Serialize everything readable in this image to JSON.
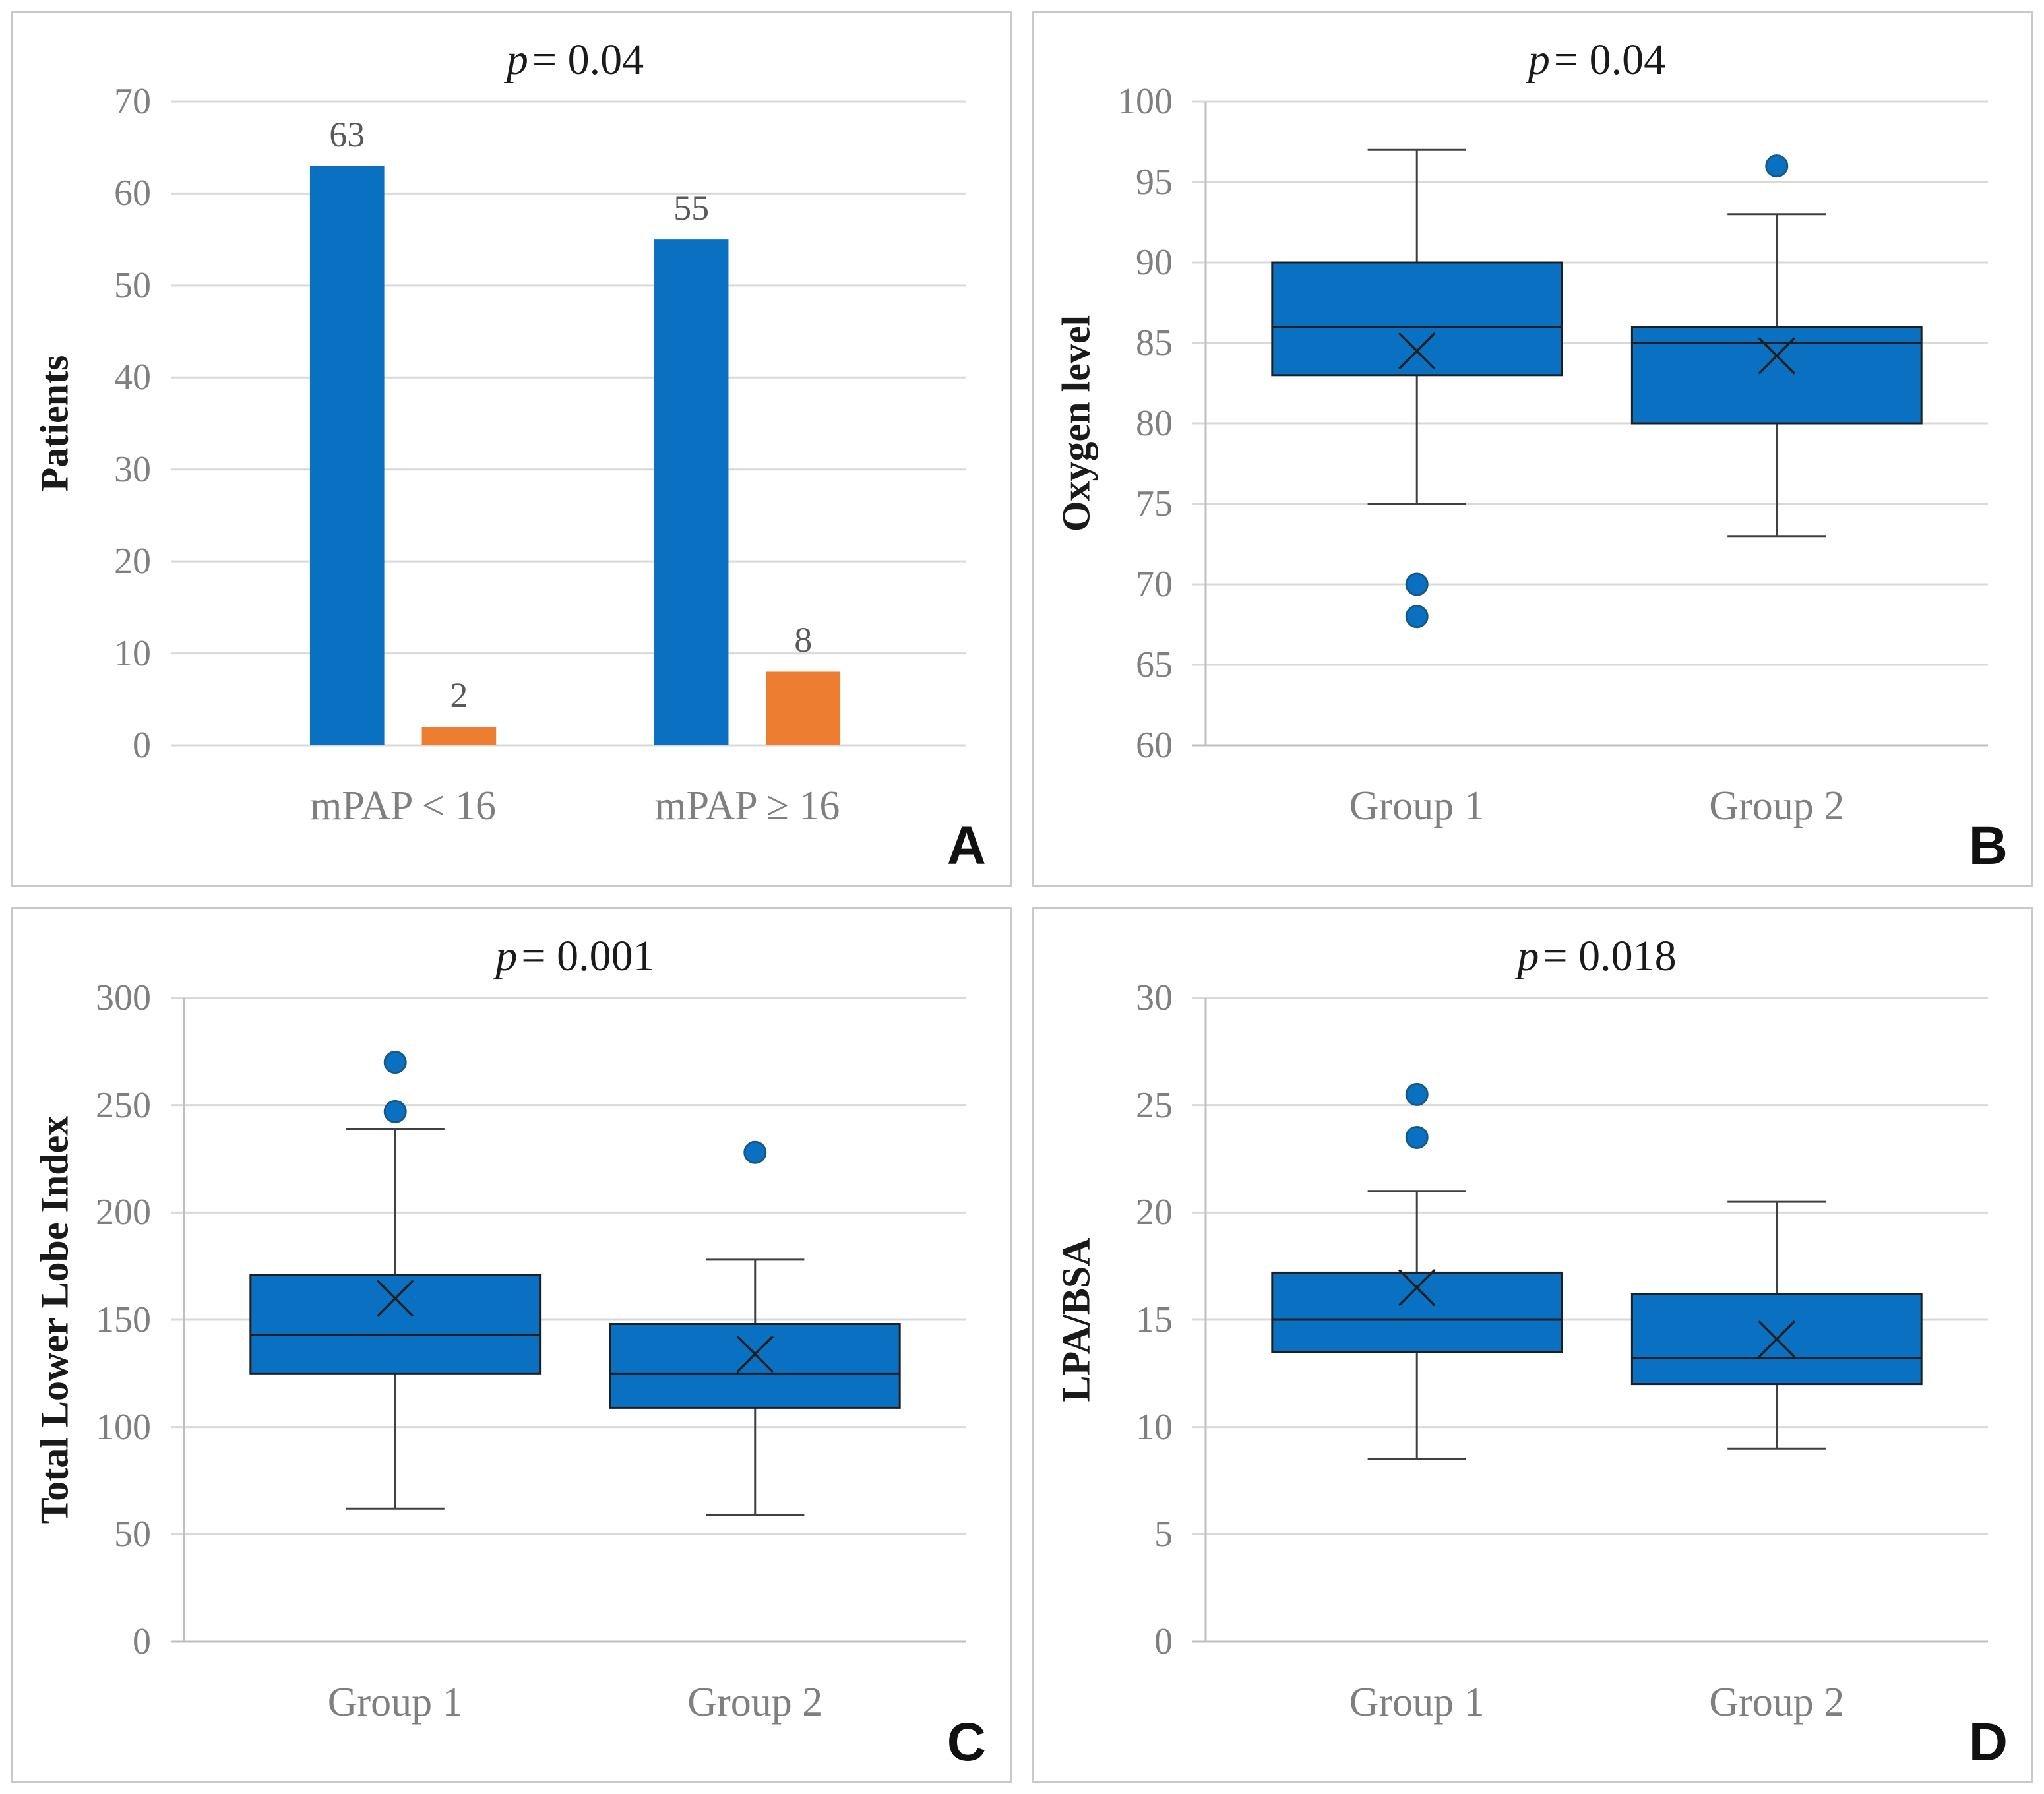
{
  "figure": {
    "background": "#ffffff",
    "panel_border_color": "#c9c9c9",
    "colors": {
      "blue": "#0a71c2",
      "orange": "#ed7d31",
      "gridline": "#d9d9d9",
      "axis_line": "#bfbfbf",
      "tick_label": "#7f7f7f",
      "category_label": "#7f7f7f",
      "value_label": "#595959",
      "axis_title": "#1a1a1a",
      "whisker": "#404040",
      "box_edge": "#1f1f1f",
      "outlier_edge": "#155987",
      "panel_letter": "#111111"
    }
  },
  "chart_data": [
    {
      "type": "bar",
      "panel_letter": "A",
      "title": "p = 0.04",
      "title_p": "p",
      "title_eq": "= 0.04",
      "ylabel": "Patients",
      "ylim": [
        0,
        70
      ],
      "yticks": [
        70,
        60,
        50,
        40,
        30,
        20,
        10,
        0
      ],
      "grid": true,
      "legend": "none",
      "categories": [
        "mPAP < 16",
        "mPAP ≥ 16"
      ],
      "series": [
        {
          "name": "blue-series",
          "color_key": "blue",
          "values": [
            63,
            55
          ]
        },
        {
          "name": "orange-series",
          "color_key": "orange",
          "values": [
            2,
            8
          ]
        }
      ]
    },
    {
      "type": "box",
      "panel_letter": "B",
      "title": "p = 0.04",
      "title_p": "p",
      "title_eq": "= 0.04",
      "ylabel": "Oxygen level",
      "ylim": [
        60,
        100
      ],
      "yticks": [
        100,
        95,
        90,
        85,
        80,
        75,
        70,
        65,
        60
      ],
      "grid": true,
      "categories": [
        "Group 1",
        "Group 2"
      ],
      "boxes": [
        {
          "group": "Group 1",
          "whisker_low": 75,
          "q1": 83,
          "median": 86,
          "q3": 90,
          "whisker_high": 97,
          "mean": 84.5,
          "outliers": [
            70,
            68
          ]
        },
        {
          "group": "Group 2",
          "whisker_low": 73,
          "q1": 80,
          "median": 85,
          "q3": 86,
          "whisker_high": 93,
          "mean": 84.2,
          "outliers": [
            96
          ]
        }
      ]
    },
    {
      "type": "box",
      "panel_letter": "C",
      "title": "p = 0.001",
      "title_p": "p",
      "title_eq": "= 0.001",
      "ylabel": "Total Lower Lobe Index",
      "ylim": [
        0,
        300
      ],
      "yticks": [
        300,
        250,
        200,
        150,
        100,
        50,
        0
      ],
      "grid": true,
      "categories": [
        "Group 1",
        "Group 2"
      ],
      "boxes": [
        {
          "group": "Group 1",
          "whisker_low": 62,
          "q1": 125,
          "median": 143,
          "q3": 171,
          "whisker_high": 239,
          "mean": 160,
          "outliers": [
            247,
            270
          ]
        },
        {
          "group": "Group 2",
          "whisker_low": 59,
          "q1": 109,
          "median": 125,
          "q3": 148,
          "whisker_high": 178,
          "mean": 134,
          "outliers": [
            228
          ]
        }
      ]
    },
    {
      "type": "box",
      "panel_letter": "D",
      "title": "p = 0.018",
      "title_p": "p",
      "title_eq": "= 0.018",
      "ylabel": "LPA/BSA",
      "ylim": [
        0,
        30
      ],
      "yticks": [
        30,
        25,
        20,
        15,
        10,
        5,
        0
      ],
      "grid": true,
      "categories": [
        "Group 1",
        "Group 2"
      ],
      "boxes": [
        {
          "group": "Group 1",
          "whisker_low": 8.5,
          "q1": 13.5,
          "median": 15,
          "q3": 17.2,
          "whisker_high": 21,
          "mean": 16.5,
          "outliers": [
            23.5,
            25.5
          ]
        },
        {
          "group": "Group 2",
          "whisker_low": 9,
          "q1": 12,
          "median": 13.2,
          "q3": 16.2,
          "whisker_high": 20.5,
          "mean": 14.1,
          "outliers": []
        }
      ]
    }
  ]
}
